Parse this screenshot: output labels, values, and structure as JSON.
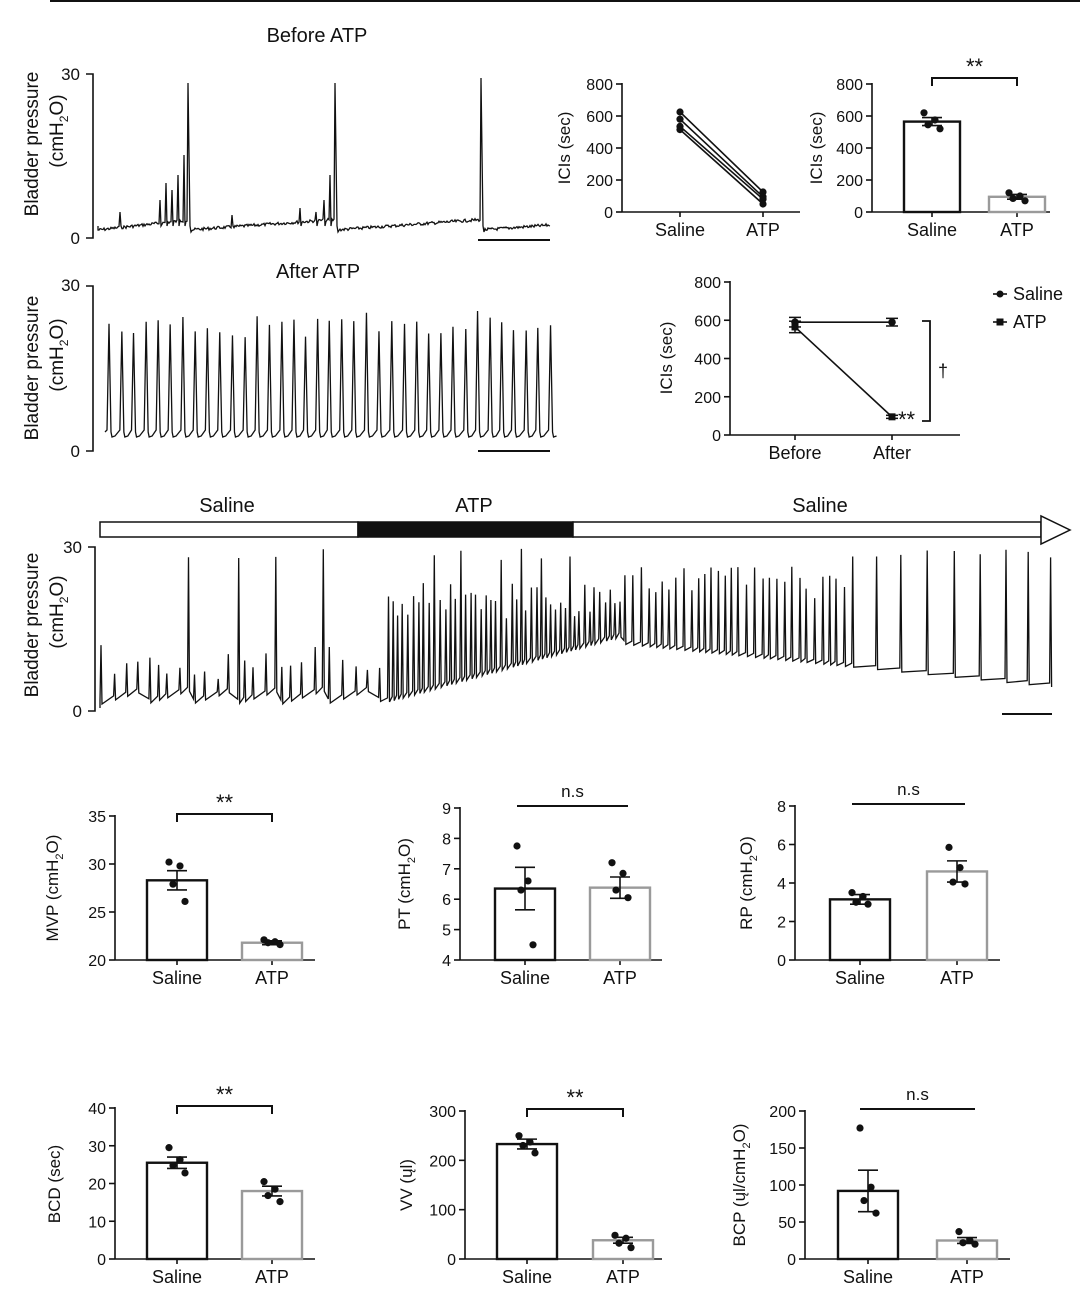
{
  "colors": {
    "black": "#111111",
    "gray": "#9a9a9a",
    "white": "#ffffff"
  },
  "traces": {
    "before": {
      "title": "Before ATP",
      "ylabel_l1": "Bladder pressure",
      "ylabel_l2": "(cmH",
      "ylabel_sub": "2",
      "ylabel_end": "O)",
      "ymax_label": "30",
      "ymin_label": "0"
    },
    "after": {
      "title": "After ATP",
      "ylabel_l1": "Bladder pressure",
      "ylabel_l2": "(cmH",
      "ylabel_sub": "2",
      "ylabel_end": "O)",
      "ymax_label": "30",
      "ymin_label": "0"
    },
    "long": {
      "segments": [
        "Saline",
        "ATP",
        "Saline"
      ],
      "ylabel_l1": "Bladder pressure",
      "ylabel_l2": "(cmH",
      "ylabel_sub": "2",
      "ylabel_end": "O)",
      "ymax_label": "30",
      "ymin_label": "0"
    }
  },
  "chart_data": [
    {
      "id": "ici_paired",
      "type": "line",
      "ylabel": "ICIs (sec)",
      "ylim": [
        0,
        800
      ],
      "yticks": [
        "0",
        "200",
        "400",
        "600",
        "800"
      ],
      "categories": [
        "Saline",
        "ATP"
      ],
      "series": [
        {
          "values": [
            625,
            125
          ]
        },
        {
          "values": [
            580,
            95
          ]
        },
        {
          "values": [
            535,
            80
          ]
        },
        {
          "values": [
            515,
            50
          ]
        }
      ]
    },
    {
      "id": "ici_bar",
      "type": "bar",
      "ylabel": "ICIs (sec)",
      "ylim": [
        0,
        800
      ],
      "yticks": [
        "0",
        "200",
        "400",
        "600",
        "800"
      ],
      "categories": [
        "Saline",
        "ATP"
      ],
      "values": [
        565,
        95
      ],
      "sem": [
        25,
        15
      ],
      "points": [
        [
          620,
          575,
          545,
          520
        ],
        [
          120,
          100,
          85,
          70
        ]
      ],
      "significance": "**"
    },
    {
      "id": "ici_time",
      "type": "line",
      "ylabel": "ICIs (sec)",
      "ylim": [
        0,
        800
      ],
      "yticks": [
        "0",
        "200",
        "400",
        "600",
        "800"
      ],
      "categories": [
        "Before",
        "After"
      ],
      "series": [
        {
          "name": "Saline",
          "values": [
            590,
            590
          ],
          "sem": [
            25,
            20
          ]
        },
        {
          "name": "ATP",
          "values": [
            565,
            95
          ],
          "sem": [
            30,
            8
          ]
        }
      ],
      "annotations": [
        "**",
        "†"
      ]
    },
    {
      "id": "mvp",
      "type": "bar",
      "ylabel": "MVP (cmH",
      "ylabel_sub": "2",
      "ylabel_end": "O)",
      "ylim": [
        20,
        35
      ],
      "yticks": [
        "20",
        "25",
        "30",
        "35"
      ],
      "categories": [
        "Saline",
        "ATP"
      ],
      "values": [
        28.3,
        21.8
      ],
      "sem": [
        1.0,
        0.2
      ],
      "points": [
        [
          30.2,
          29.8,
          27.9,
          26.1
        ],
        [
          22.1,
          21.9,
          21.8,
          21.6
        ]
      ],
      "significance": "**"
    },
    {
      "id": "pt",
      "type": "bar",
      "ylabel": "PT (cmH",
      "ylabel_sub": "2",
      "ylabel_end": "O)",
      "ylim": [
        4,
        9
      ],
      "yticks": [
        "4",
        "5",
        "6",
        "7",
        "8",
        "9"
      ],
      "categories": [
        "Saline",
        "ATP"
      ],
      "values": [
        6.35,
        6.38
      ],
      "sem": [
        0.7,
        0.35
      ],
      "points": [
        [
          7.75,
          6.6,
          6.3,
          4.5
        ],
        [
          7.2,
          6.85,
          6.3,
          6.05
        ]
      ],
      "significance": "n.s"
    },
    {
      "id": "rp",
      "type": "bar",
      "ylabel": "RP (cmH",
      "ylabel_sub": "2",
      "ylabel_end": "O)",
      "ylim": [
        0,
        8
      ],
      "yticks": [
        "0",
        "2",
        "4",
        "6",
        "8"
      ],
      "categories": [
        "Saline",
        "ATP"
      ],
      "values": [
        3.15,
        4.6
      ],
      "sem": [
        0.25,
        0.55
      ],
      "points": [
        [
          3.5,
          3.3,
          3.0,
          2.9
        ],
        [
          5.85,
          4.8,
          4.05,
          3.95
        ]
      ],
      "significance": "n.s"
    },
    {
      "id": "bcd",
      "type": "bar",
      "ylabel": "BCD (sec)",
      "ylim": [
        0,
        40
      ],
      "yticks": [
        "0",
        "10",
        "20",
        "30",
        "40"
      ],
      "categories": [
        "Saline",
        "ATP"
      ],
      "values": [
        25.5,
        18.0
      ],
      "sem": [
        1.5,
        1.3
      ],
      "points": [
        [
          29.5,
          26.3,
          24.8,
          22.8
        ],
        [
          20.5,
          18.5,
          16.8,
          15.2
        ]
      ],
      "significance": "**"
    },
    {
      "id": "vv",
      "type": "bar",
      "ylabel": "VV (ųl)",
      "ylim": [
        0,
        300
      ],
      "yticks": [
        "0",
        "100",
        "200",
        "300"
      ],
      "categories": [
        "Saline",
        "ATP"
      ],
      "values": [
        233,
        38
      ],
      "sem": [
        10,
        6
      ],
      "points": [
        [
          250,
          237,
          230,
          215
        ],
        [
          48,
          42,
          32,
          23
        ]
      ],
      "significance": "**"
    },
    {
      "id": "bcp",
      "type": "bar",
      "ylabel": "BCP (ųl/cmH",
      "ylabel_sub": "2",
      "ylabel_end": "O)",
      "ylim": [
        0,
        200
      ],
      "yticks": [
        "0",
        "50",
        "100",
        "150",
        "200"
      ],
      "categories": [
        "Saline",
        "ATP"
      ],
      "values": [
        92,
        25
      ],
      "sem": [
        28,
        4
      ],
      "points": [
        [
          177,
          97,
          79,
          62
        ],
        [
          37,
          25,
          22,
          20
        ]
      ],
      "significance": "n.s"
    }
  ]
}
